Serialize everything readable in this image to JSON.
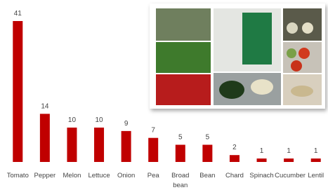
{
  "chart_data": {
    "type": "bar",
    "categories": [
      "Tomato",
      "Pepper",
      "Melon",
      "Lettuce",
      "Onion",
      "Pea",
      "Broad bean",
      "Bean",
      "Chard",
      "Spinach",
      "Cucumber",
      "Lentil"
    ],
    "values": [
      41,
      14,
      10,
      10,
      9,
      7,
      5,
      5,
      2,
      1,
      1,
      1
    ],
    "color": "#c00000"
  }
}
